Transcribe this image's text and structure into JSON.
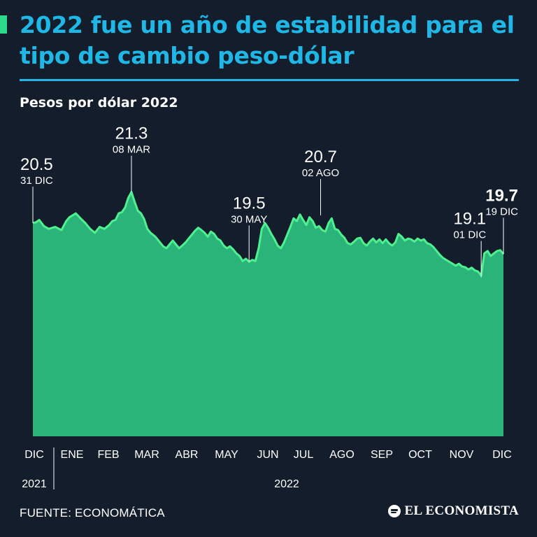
{
  "header": {
    "title": "2022 fue un año de estabilidad para el tipo de cambio peso-dólar",
    "subtitle": "Pesos por dólar 2022"
  },
  "chart_data": {
    "type": "area",
    "ylabel": "Pesos por dólar",
    "ylim": [
      15.0,
      21.6
    ],
    "color": "#2bb47a",
    "line_color": "#4ff08f",
    "months": [
      "DIC",
      "ENE",
      "FEB",
      "MAR",
      "ABR",
      "MAY",
      "JUN",
      "JUL",
      "AGO",
      "SEP",
      "OCT",
      "NOV",
      "DIC"
    ],
    "years": [
      "2021",
      "2022"
    ],
    "series": [
      {
        "name": "Tipo de cambio peso-dólar",
        "points": [
          [
            0,
            20.5
          ],
          [
            2,
            20.52
          ],
          [
            4,
            20.58
          ],
          [
            7,
            20.42
          ],
          [
            10,
            20.35
          ],
          [
            14,
            20.4
          ],
          [
            18,
            20.32
          ],
          [
            21,
            20.55
          ],
          [
            23,
            20.65
          ],
          [
            27,
            20.75
          ],
          [
            30,
            20.62
          ],
          [
            33,
            20.5
          ],
          [
            36,
            20.35
          ],
          [
            39,
            20.25
          ],
          [
            42,
            20.4
          ],
          [
            45,
            20.35
          ],
          [
            48,
            20.45
          ],
          [
            50,
            20.55
          ],
          [
            52,
            20.58
          ],
          [
            54,
            20.75
          ],
          [
            56,
            20.78
          ],
          [
            58,
            20.9
          ],
          [
            60,
            21.15
          ],
          [
            62,
            21.3
          ],
          [
            64,
            21.05
          ],
          [
            66,
            20.82
          ],
          [
            68,
            20.75
          ],
          [
            70,
            20.6
          ],
          [
            72,
            20.35
          ],
          [
            74,
            20.25
          ],
          [
            77,
            20.15
          ],
          [
            80,
            20.0
          ],
          [
            82,
            19.9
          ],
          [
            84,
            19.85
          ],
          [
            86,
            19.95
          ],
          [
            88,
            20.05
          ],
          [
            90,
            19.95
          ],
          [
            92,
            19.85
          ],
          [
            94,
            19.92
          ],
          [
            96,
            20.0
          ],
          [
            98,
            20.1
          ],
          [
            100,
            20.2
          ],
          [
            102,
            20.3
          ],
          [
            104,
            20.38
          ],
          [
            106,
            20.32
          ],
          [
            108,
            20.25
          ],
          [
            110,
            20.15
          ],
          [
            112,
            20.28
          ],
          [
            114,
            20.22
          ],
          [
            116,
            20.1
          ],
          [
            118,
            20.05
          ],
          [
            120,
            19.92
          ],
          [
            122,
            19.85
          ],
          [
            124,
            19.9
          ],
          [
            126,
            19.82
          ],
          [
            128,
            19.72
          ],
          [
            130,
            19.65
          ],
          [
            132,
            19.52
          ],
          [
            134,
            19.58
          ],
          [
            136,
            19.5
          ],
          [
            138,
            19.55
          ],
          [
            140,
            19.52
          ],
          [
            142,
            19.85
          ],
          [
            144,
            20.35
          ],
          [
            146,
            20.5
          ],
          [
            148,
            20.38
          ],
          [
            150,
            20.22
          ],
          [
            152,
            20.08
          ],
          [
            154,
            19.92
          ],
          [
            156,
            19.85
          ],
          [
            158,
            20.0
          ],
          [
            160,
            20.2
          ],
          [
            162,
            20.4
          ],
          [
            164,
            20.62
          ],
          [
            166,
            20.55
          ],
          [
            168,
            20.72
          ],
          [
            170,
            20.58
          ],
          [
            172,
            20.45
          ],
          [
            174,
            20.65
          ],
          [
            176,
            20.55
          ],
          [
            178,
            20.38
          ],
          [
            180,
            20.42
          ],
          [
            182,
            20.32
          ],
          [
            184,
            20.28
          ],
          [
            186,
            20.5
          ],
          [
            188,
            20.62
          ],
          [
            190,
            20.35
          ],
          [
            192,
            20.32
          ],
          [
            194,
            20.2
          ],
          [
            196,
            20.12
          ],
          [
            198,
            19.98
          ],
          [
            200,
            19.95
          ],
          [
            202,
            20.02
          ],
          [
            204,
            20.1
          ],
          [
            206,
            20.12
          ],
          [
            208,
            19.98
          ],
          [
            210,
            19.92
          ],
          [
            212,
            20.02
          ],
          [
            214,
            20.1
          ],
          [
            216,
            20.0
          ],
          [
            218,
            20.08
          ],
          [
            220,
            19.98
          ],
          [
            222,
            20.08
          ],
          [
            224,
            19.98
          ],
          [
            226,
            19.92
          ],
          [
            228,
            20.0
          ],
          [
            230,
            20.22
          ],
          [
            232,
            20.15
          ],
          [
            234,
            20.05
          ],
          [
            236,
            20.1
          ],
          [
            238,
            20.08
          ],
          [
            240,
            20.02
          ],
          [
            242,
            20.1
          ],
          [
            244,
            20.05
          ],
          [
            246,
            20.08
          ],
          [
            248,
            19.98
          ],
          [
            250,
            19.95
          ],
          [
            252,
            19.88
          ],
          [
            254,
            19.78
          ],
          [
            256,
            19.68
          ],
          [
            258,
            19.6
          ],
          [
            260,
            19.55
          ],
          [
            262,
            19.5
          ],
          [
            264,
            19.45
          ],
          [
            266,
            19.4
          ],
          [
            268,
            19.45
          ],
          [
            270,
            19.38
          ],
          [
            272,
            19.36
          ],
          [
            274,
            19.3
          ],
          [
            276,
            19.35
          ],
          [
            278,
            19.28
          ],
          [
            280,
            19.25
          ],
          [
            282,
            19.15
          ],
          [
            284,
            19.72
          ],
          [
            286,
            19.78
          ],
          [
            288,
            19.65
          ],
          [
            290,
            19.72
          ],
          [
            292,
            19.78
          ],
          [
            294,
            19.8
          ],
          [
            296,
            19.7
          ]
        ]
      }
    ],
    "annotations": [
      {
        "value": "20.5",
        "date": "31 DIC",
        "t": 0,
        "y": 20.5,
        "emphasis": false
      },
      {
        "value": "21.3",
        "date": "08 MAR",
        "t": 62,
        "y": 21.3,
        "emphasis": false
      },
      {
        "value": "19.5",
        "date": "30 MAY",
        "t": 136,
        "y": 19.5,
        "emphasis": false
      },
      {
        "value": "20.7",
        "date": "02 AGO",
        "t": 181,
        "y": 20.7,
        "emphasis": false
      },
      {
        "value": "19.1",
        "date": "01 DIC",
        "t": 282,
        "y": 19.1,
        "emphasis": false
      },
      {
        "value": "19.7",
        "date": "19 DIC",
        "t": 296,
        "y": 19.7,
        "emphasis": true
      }
    ]
  },
  "footer": {
    "source": "FUENTE: ECONOMÁTICA",
    "brand": "EL ECONOMISTA"
  }
}
